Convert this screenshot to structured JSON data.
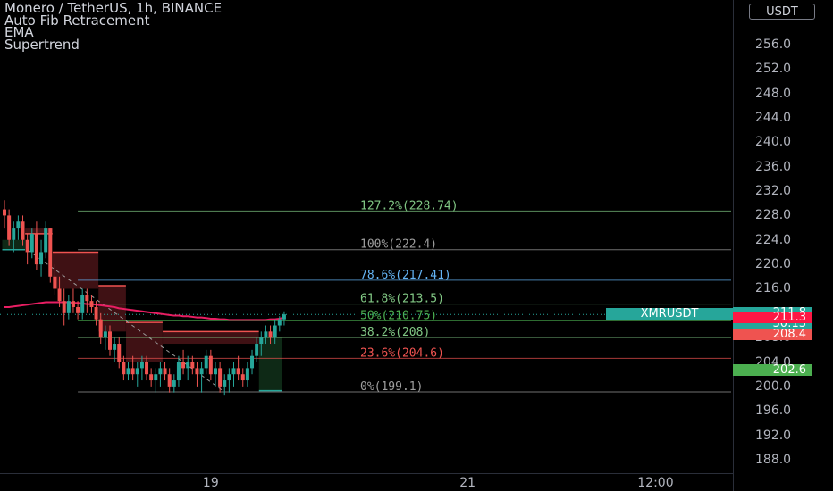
{
  "header": {
    "symbol_line": "Monero / TetherUS, 1h, BINANCE",
    "indicators": [
      "Auto Fib Retracement",
      "EMA",
      "Supertrend"
    ]
  },
  "currency": "USDT",
  "symbol_label": "XMRUSDT",
  "price_tags": [
    {
      "text": "211.8",
      "color": "#26a69a",
      "price": 211.8
    },
    {
      "text": "30:13",
      "color": "#26a69a"
    },
    {
      "text": "211.3",
      "color": "#ff1744",
      "price": 211.3
    },
    {
      "text": "208.4",
      "color": "#ef5350",
      "price": 208.4
    },
    {
      "text": "202.6",
      "color": "#4caf50",
      "price": 202.6
    }
  ],
  "colors": {
    "up": "#26a69a",
    "down": "#ef5350",
    "ema": "#e91e63",
    "supertrend_down_fill": "#4a1418",
    "supertrend_up_fill": "#10301a"
  },
  "chart_data": {
    "type": "candlestick",
    "title": "Monero / TetherUS, 1h, BINANCE",
    "y_ticks": [
      256.0,
      252.0,
      248.0,
      244.0,
      240.0,
      236.0,
      232.0,
      228.0,
      224.0,
      220.0,
      216.0,
      212.0,
      208.0,
      204.0,
      200.0,
      196.0,
      192.0,
      188.0
    ],
    "ylim": [
      185.8,
      263.3
    ],
    "x_ticks": [
      {
        "label": "19",
        "index": 45
      },
      {
        "label": "21",
        "index": 101
      },
      {
        "label": "12:00",
        "index": 142
      }
    ],
    "fib_levels": [
      {
        "label": "127.2%(228.74)",
        "price": 228.74,
        "color": "#81c784"
      },
      {
        "label": "100%(222.4)",
        "price": 222.4,
        "color": "#9e9e9e"
      },
      {
        "label": "78.6%(217.41)",
        "price": 217.41,
        "color": "#64b5f6"
      },
      {
        "label": "61.8%(213.5)",
        "price": 213.5,
        "color": "#81c784"
      },
      {
        "label": "50%(210.75)",
        "price": 210.75,
        "color": "#4caf50"
      },
      {
        "label": "38.2%(208)",
        "price": 208.0,
        "color": "#81c784"
      },
      {
        "label": "23.6%(204.6)",
        "price": 204.6,
        "color": "#ef5350"
      },
      {
        "label": "0%(199.1)",
        "price": 199.1,
        "color": "#9e9e9e"
      }
    ],
    "last_price": 211.8,
    "candles": [
      [
        229,
        230.5,
        226,
        228
      ],
      [
        228,
        229,
        223,
        224
      ],
      [
        224,
        227,
        222,
        226
      ],
      [
        226,
        228,
        224,
        227
      ],
      [
        227,
        228,
        223,
        224
      ],
      [
        224,
        225,
        220,
        222
      ],
      [
        222,
        226,
        221,
        225
      ],
      [
        225,
        227,
        219,
        220
      ],
      [
        220,
        224,
        218,
        222
      ],
      [
        222,
        227,
        221,
        226
      ],
      [
        226,
        226,
        217,
        218
      ],
      [
        218,
        220,
        215,
        216
      ],
      [
        216,
        218,
        213,
        214
      ],
      [
        214,
        216,
        210,
        212
      ],
      [
        212,
        215,
        211,
        214
      ],
      [
        214,
        216,
        212,
        213
      ],
      [
        213,
        214,
        211,
        212
      ],
      [
        212,
        216,
        211,
        215
      ],
      [
        215,
        216,
        212,
        214
      ],
      [
        214,
        215,
        212,
        213
      ],
      [
        213,
        214,
        210,
        211
      ],
      [
        211,
        212,
        207,
        208
      ],
      [
        208,
        210,
        206,
        209
      ],
      [
        209,
        210,
        205,
        206
      ],
      [
        206,
        208,
        204,
        207
      ],
      [
        207,
        208,
        203,
        204
      ],
      [
        204,
        205,
        201,
        202
      ],
      [
        202,
        204,
        201,
        203
      ],
      [
        203,
        205,
        201,
        202
      ],
      [
        202,
        204,
        200,
        203
      ],
      [
        203,
        205,
        201,
        204
      ],
      [
        204,
        205,
        201,
        202
      ],
      [
        202,
        203,
        200,
        201
      ],
      [
        201,
        203,
        199,
        202
      ],
      [
        202,
        204,
        200,
        203
      ],
      [
        203,
        204,
        201,
        202
      ],
      [
        202,
        203,
        199,
        200
      ],
      [
        200,
        202,
        199,
        201
      ],
      [
        201,
        205,
        200,
        204
      ],
      [
        204,
        206,
        202,
        203
      ],
      [
        203,
        205,
        201,
        204
      ],
      [
        204,
        205,
        202,
        203
      ],
      [
        203,
        204,
        200,
        202
      ],
      [
        202,
        204,
        199,
        203
      ],
      [
        203,
        206,
        202,
        205
      ],
      [
        205,
        206,
        201,
        202
      ],
      [
        202,
        204,
        200,
        203
      ],
      [
        203,
        204,
        199,
        200
      ],
      [
        200,
        202,
        198.5,
        201
      ],
      [
        201,
        203,
        199,
        202
      ],
      [
        202,
        204,
        200,
        203
      ],
      [
        203,
        205,
        201,
        202
      ],
      [
        202,
        203,
        200,
        201
      ],
      [
        201,
        204,
        200,
        203
      ],
      [
        203,
        206,
        202,
        205
      ],
      [
        205,
        208,
        204,
        207
      ],
      [
        207,
        209,
        205,
        208
      ],
      [
        208,
        210,
        207,
        209
      ],
      [
        209,
        210,
        207,
        208
      ],
      [
        208,
        211,
        207,
        210
      ],
      [
        210,
        211.5,
        209,
        211
      ],
      [
        211,
        212.3,
        210,
        211.8
      ]
    ],
    "ema": [
      213,
      213,
      213.1,
      213.2,
      213.3,
      213.4,
      213.5,
      213.6,
      213.7,
      213.8,
      213.8,
      213.8,
      213.8,
      213.8,
      213.8,
      213.7,
      213.7,
      213.6,
      213.5,
      213.5,
      213.4,
      213.3,
      213.2,
      213.1,
      213.0,
      212.8,
      212.7,
      212.6,
      212.5,
      212.4,
      212.3,
      212.2,
      212.1,
      212.0,
      211.9,
      211.8,
      211.7,
      211.6,
      211.6,
      211.5,
      211.5,
      211.4,
      211.3,
      211.3,
      211.2,
      211.1,
      211.1,
      211.0,
      211.0,
      210.9,
      210.9,
      210.9,
      210.9,
      210.9,
      210.9,
      210.9,
      210.9,
      210.9,
      211.0,
      211.0,
      211.1,
      211.3
    ],
    "supertrend": [
      {
        "dir": "up",
        "from": 0,
        "to": 4,
        "price": 222.4
      },
      {
        "dir": "down",
        "from": 5,
        "to": 10,
        "price": 225
      },
      {
        "dir": "down",
        "from": 11,
        "to": 20,
        "price": 222
      },
      {
        "dir": "down",
        "from": 21,
        "to": 26,
        "price": 216.5
      },
      {
        "dir": "down",
        "from": 27,
        "to": 34,
        "price": 210.5
      },
      {
        "dir": "down",
        "from": 35,
        "to": 55,
        "price": 209
      },
      {
        "dir": "up",
        "from": 56,
        "to": 60,
        "price": 199.3
      }
    ],
    "fib_trend": [
      {
        "index": 5,
        "price": 222.4
      },
      {
        "index": 48,
        "price": 199.1
      }
    ]
  }
}
